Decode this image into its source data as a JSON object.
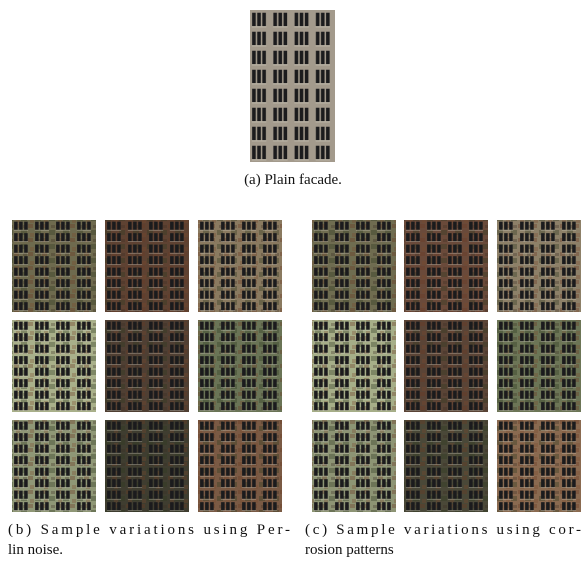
{
  "figure": {
    "subfigures": [
      {
        "caption": [
          "(a) Plain facade."
        ]
      },
      {
        "caption": [
          "(b) Sample variations using Per-",
          "lin noise."
        ]
      },
      {
        "caption": [
          "(c) Sample variations using cor-",
          "rosion patterns"
        ]
      }
    ]
  }
}
